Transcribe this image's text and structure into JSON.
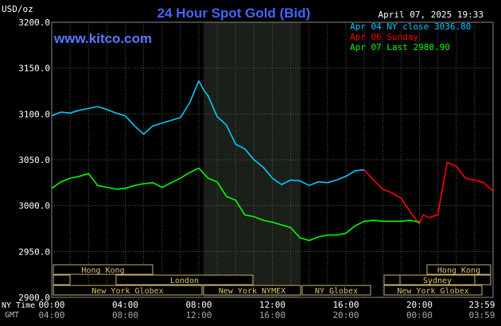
{
  "header": {
    "title": "24 Hour Spot Gold (Bid)",
    "timestamp": "April 07, 2025 19:33",
    "unit": "USD/oz",
    "watermark": "www.kitco.com"
  },
  "legend": [
    {
      "text": "Apr 04 NY close 3036.80",
      "color": "#00ccff"
    },
    {
      "text": "Apr 06 Sunday",
      "color": "#ff0000"
    },
    {
      "text": "Apr 07 Last 2980.90",
      "color": "#00ff00"
    }
  ],
  "axis": {
    "y_ticks": [
      "3200.0",
      "3150.0",
      "3100.0",
      "3050.0",
      "3000.0",
      "2950.0",
      "2900.0"
    ],
    "ny_label": "NY Time",
    "gmt_label": "GMT",
    "ny_ticks": [
      "00:00",
      "04:00",
      "08:00",
      "12:00",
      "16:00",
      "20:00",
      "23:59"
    ],
    "gmt_ticks": [
      "04:00",
      "08:00",
      "12:00",
      "16:00",
      "20:00",
      "00:00",
      "03:59"
    ]
  },
  "sessions": [
    {
      "label": "Hong Kong",
      "row": 0
    },
    {
      "label": "London",
      "row": 1
    },
    {
      "label": "New York Globex",
      "row": 2
    },
    {
      "label": "New York NYMEX",
      "row": 2
    },
    {
      "label": "NY Globex",
      "row": 2
    },
    {
      "label": "Hong Kong",
      "row": 0
    },
    {
      "label": "Sydney",
      "row": 1
    },
    {
      "label": "New York Globex",
      "row": 2
    }
  ],
  "chart_data": {
    "type": "line",
    "title": "24 Hour Spot Gold (Bid)",
    "ylabel": "USD/oz",
    "xlabel": "NY Time",
    "ylim": [
      2900,
      3200
    ],
    "xlim": [
      0,
      24
    ],
    "grid": true,
    "legend_position": "top-right",
    "series": [
      {
        "name": "Apr 04 NY close 3036.80",
        "color": "#00ccff",
        "x": [
          0,
          0.5,
          1,
          1.5,
          2,
          2.5,
          3,
          3.5,
          4,
          4.5,
          5,
          5.5,
          6,
          6.5,
          7,
          7.5,
          8,
          8.3,
          8.5,
          9,
          9.5,
          10,
          10.5,
          11,
          11.5,
          12,
          12.5,
          13,
          13.5,
          14,
          14.5,
          15,
          15.5,
          16,
          16.5,
          17
        ],
        "y": [
          3098,
          3102,
          3101,
          3104,
          3106,
          3108,
          3105,
          3101,
          3098,
          3087,
          3078,
          3087,
          3090,
          3093,
          3096,
          3112,
          3136,
          3125,
          3120,
          3097,
          3088,
          3067,
          3062,
          3050,
          3042,
          3030,
          3023,
          3028,
          3027,
          3022,
          3026,
          3025,
          3028,
          3032,
          3038,
          3039
        ]
      },
      {
        "name": "Apr 06 Sunday",
        "color": "#ff0000",
        "x": [
          17,
          17.5,
          18,
          18.5,
          19,
          19.5,
          20,
          20.2,
          20.5,
          21,
          21.5,
          22,
          22.5,
          23,
          23.5,
          23.99
        ],
        "y": [
          3039,
          3028,
          3018,
          3014,
          3008,
          2993,
          2980,
          2990,
          2987,
          2990,
          3047,
          3043,
          3030,
          3028,
          3025,
          3016
        ]
      },
      {
        "name": "Apr 07 Last 2980.90",
        "color": "#00ff00",
        "x": [
          0,
          0.5,
          1,
          1.5,
          2,
          2.5,
          3,
          3.5,
          4,
          4.5,
          5,
          5.5,
          6,
          6.5,
          7,
          7.5,
          8,
          8.5,
          9,
          9.5,
          10,
          10.5,
          11,
          11.5,
          12,
          12.5,
          13,
          13.5,
          14,
          14.5,
          15,
          15.5,
          16,
          16.5,
          17,
          17.5,
          18,
          18.5,
          19,
          19.5,
          20
        ],
        "y": [
          3019,
          3026,
          3030,
          3032,
          3035,
          3022,
          3020,
          3018,
          3019,
          3022,
          3024,
          3025,
          3020,
          3025,
          3030,
          3036,
          3041,
          3030,
          3026,
          3010,
          3006,
          2990,
          2988,
          2984,
          2982,
          2979,
          2976,
          2965,
          2962,
          2966,
          2968,
          2968,
          2970,
          2978,
          2983,
          2984,
          2983,
          2983,
          2983,
          2984,
          2982
        ]
      }
    ]
  }
}
